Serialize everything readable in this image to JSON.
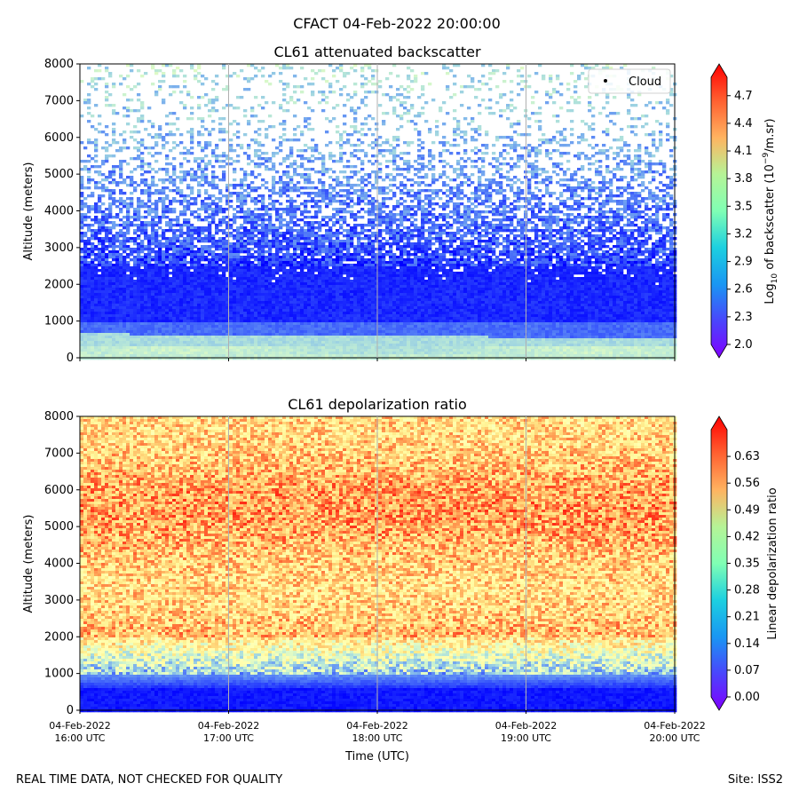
{
  "suptitle": "CFACT 04-Feb-2022 20:00:00",
  "footer_left": "REAL TIME DATA, NOT CHECKED FOR QUALITY",
  "footer_right": "Site: ISS2",
  "chart_data": [
    {
      "type": "heatmap",
      "title": "CL61 attenuated backscatter",
      "xlabel": "",
      "ylabel": "Altitude (meters)",
      "ylim": [
        0,
        8000
      ],
      "yticks": [
        "0",
        "1000",
        "2000",
        "3000",
        "4000",
        "5000",
        "6000",
        "7000",
        "8000"
      ],
      "xticks": [],
      "colorbar": {
        "label_prefix": "Log",
        "label_sub": "10",
        "label_mid": " of backscatter (10",
        "label_sup": "−9",
        "label_suffix": "/m.sr)",
        "range": [
          2.0,
          4.9
        ],
        "ticks": [
          "2.0",
          "2.3",
          "2.6",
          "2.9",
          "3.2",
          "3.5",
          "3.8",
          "4.1",
          "4.4",
          "4.7"
        ],
        "tick_values": [
          2.0,
          2.3,
          2.6,
          2.9,
          3.2,
          3.5,
          3.8,
          4.1,
          4.4,
          4.7
        ],
        "colormap": "rainbow"
      },
      "legend": {
        "label": "Cloud",
        "marker": "black dot",
        "position": "top-right"
      },
      "profile_description": "High values near surface (aerosol layer below ~600 m), decreasing with altitude, sparse noisy returns above ~3000 m"
    },
    {
      "type": "heatmap",
      "title": "CL61 depolarization ratio",
      "xlabel": "Time (UTC)",
      "ylabel": "Altitude (meters)",
      "ylim": [
        0,
        8000
      ],
      "yticks": [
        "0",
        "1000",
        "2000",
        "3000",
        "4000",
        "5000",
        "6000",
        "7000",
        "8000"
      ],
      "xticks": [
        {
          "date": "04-Feb-2022",
          "time": "16:00 UTC"
        },
        {
          "date": "04-Feb-2022",
          "time": "17:00 UTC"
        },
        {
          "date": "04-Feb-2022",
          "time": "18:00 UTC"
        },
        {
          "date": "04-Feb-2022",
          "time": "19:00 UTC"
        },
        {
          "date": "04-Feb-2022",
          "time": "20:00 UTC"
        }
      ],
      "colorbar": {
        "label": "Linear depolarization ratio",
        "range": [
          0.0,
          0.7
        ],
        "ticks": [
          "0.00",
          "0.07",
          "0.14",
          "0.21",
          "0.28",
          "0.35",
          "0.42",
          "0.49",
          "0.56",
          "0.63"
        ],
        "tick_values": [
          0.0,
          0.07,
          0.14,
          0.21,
          0.28,
          0.35,
          0.42,
          0.49,
          0.56,
          0.63
        ],
        "colormap": "rainbow"
      },
      "profile_description": "Low ratio (~0.02) below ~1000 m, transition near 1000-2000 m, high noisy values (0.45-0.7) above"
    }
  ]
}
